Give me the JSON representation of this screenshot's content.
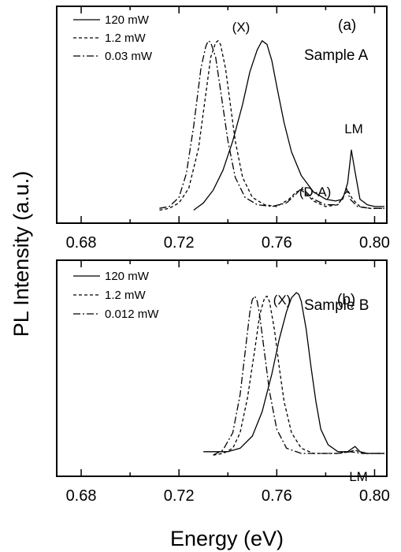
{
  "chart_data": [
    {
      "type": "line",
      "panel": "a",
      "panel_label": "(a)",
      "sample_label": "Sample A",
      "xlabel": "Energy (eV)",
      "ylabel": "PL Intensity (a.u.)",
      "xlim": [
        0.67,
        0.805
      ],
      "ylim": [
        0,
        1
      ],
      "x_ticks": [
        "0.68",
        "0.72",
        "0.76",
        "0.80"
      ],
      "legend_position": "top-left",
      "annotations": [
        {
          "text": "(X)",
          "x": 0.745,
          "y": 0.92
        },
        {
          "text": "(D-A)",
          "x": 0.77,
          "y": 0.25
        },
        {
          "text": "LM",
          "x": 0.791,
          "y": 0.34
        }
      ],
      "series": [
        {
          "name": "120 mW",
          "style": "solid",
          "x": [
            0.726,
            0.73,
            0.734,
            0.738,
            0.742,
            0.746,
            0.749,
            0.752,
            0.754,
            0.756,
            0.758,
            0.76,
            0.763,
            0.766,
            0.77,
            0.775,
            0.78,
            0.784,
            0.787,
            0.789,
            0.7905,
            0.792,
            0.794,
            0.797,
            0.8,
            0.804
          ],
          "y": [
            0.0,
            0.04,
            0.11,
            0.22,
            0.38,
            0.58,
            0.76,
            0.88,
            0.93,
            0.91,
            0.82,
            0.68,
            0.48,
            0.32,
            0.19,
            0.1,
            0.06,
            0.05,
            0.06,
            0.15,
            0.33,
            0.21,
            0.06,
            0.03,
            0.02,
            0.02
          ]
        },
        {
          "name": "1.2 mW",
          "style": "dashed",
          "x": [
            0.712,
            0.716,
            0.72,
            0.724,
            0.728,
            0.731,
            0.733,
            0.735,
            0.736,
            0.737,
            0.739,
            0.741,
            0.743,
            0.746,
            0.75,
            0.755,
            0.76,
            0.765,
            0.768,
            0.77,
            0.772,
            0.775,
            0.78,
            0.785,
            0.787,
            0.789,
            0.791,
            0.794,
            0.798,
            0.804
          ],
          "y": [
            0.0,
            0.01,
            0.04,
            0.12,
            0.34,
            0.64,
            0.84,
            0.92,
            0.93,
            0.91,
            0.78,
            0.58,
            0.38,
            0.18,
            0.07,
            0.03,
            0.02,
            0.06,
            0.1,
            0.11,
            0.09,
            0.05,
            0.02,
            0.03,
            0.07,
            0.11,
            0.06,
            0.02,
            0.01,
            0.01
          ]
        },
        {
          "name": "0.03 mW",
          "style": "dashdot",
          "x": [
            0.712,
            0.716,
            0.72,
            0.723,
            0.726,
            0.729,
            0.731,
            0.732,
            0.733,
            0.735,
            0.737,
            0.74,
            0.743,
            0.747,
            0.752,
            0.758,
            0.764,
            0.768,
            0.77,
            0.772,
            0.775,
            0.78,
            0.785,
            0.787,
            0.7885,
            0.79,
            0.793,
            0.798,
            0.804
          ],
          "y": [
            0.01,
            0.02,
            0.07,
            0.2,
            0.46,
            0.78,
            0.9,
            0.93,
            0.92,
            0.84,
            0.66,
            0.38,
            0.18,
            0.07,
            0.03,
            0.02,
            0.04,
            0.09,
            0.12,
            0.1,
            0.06,
            0.03,
            0.03,
            0.07,
            0.12,
            0.06,
            0.02,
            0.01,
            0.01
          ]
        }
      ]
    },
    {
      "type": "line",
      "panel": "b",
      "panel_label": "(b)",
      "sample_label": "Sample B",
      "xlabel": "Energy (eV)",
      "ylabel": "PL Intensity (a.u.)",
      "xlim": [
        0.67,
        0.805
      ],
      "ylim": [
        0,
        1
      ],
      "x_ticks": [
        "0.68",
        "0.72",
        "0.76",
        "0.80"
      ],
      "legend_position": "top-left",
      "annotations": [
        {
          "text": "(X)",
          "x": 0.757,
          "y": 0.95
        },
        {
          "text": "LM",
          "x": 0.792,
          "y": 0.15
        }
      ],
      "series": [
        {
          "name": "120 mW",
          "style": "solid",
          "x": [
            0.73,
            0.735,
            0.74,
            0.745,
            0.75,
            0.754,
            0.758,
            0.761,
            0.764,
            0.766,
            0.768,
            0.769,
            0.77,
            0.772,
            0.774,
            0.776,
            0.778,
            0.781,
            0.785,
            0.789,
            0.791,
            0.792,
            0.794,
            0.797,
            0.8,
            0.804
          ],
          "y": [
            0.03,
            0.03,
            0.03,
            0.05,
            0.12,
            0.26,
            0.48,
            0.68,
            0.84,
            0.92,
            0.95,
            0.94,
            0.9,
            0.74,
            0.52,
            0.32,
            0.16,
            0.07,
            0.03,
            0.03,
            0.05,
            0.06,
            0.03,
            0.02,
            0.02,
            0.02
          ]
        },
        {
          "name": "1.2 mW",
          "style": "dashed",
          "x": [
            0.734,
            0.738,
            0.742,
            0.745,
            0.748,
            0.751,
            0.753,
            0.755,
            0.756,
            0.757,
            0.759,
            0.761,
            0.763,
            0.766,
            0.77,
            0.775,
            0.78,
            0.785,
            0.79,
            0.792,
            0.795,
            0.8,
            0.804
          ],
          "y": [
            0.01,
            0.02,
            0.05,
            0.14,
            0.34,
            0.62,
            0.82,
            0.92,
            0.93,
            0.9,
            0.74,
            0.52,
            0.32,
            0.14,
            0.05,
            0.02,
            0.02,
            0.02,
            0.03,
            0.04,
            0.02,
            0.02,
            0.02
          ]
        },
        {
          "name": "0.012 mW",
          "style": "dashdot",
          "x": [
            0.734,
            0.738,
            0.742,
            0.745,
            0.747,
            0.749,
            0.75,
            0.751,
            0.752,
            0.753,
            0.755,
            0.757,
            0.76,
            0.764,
            0.77,
            0.775,
            0.78,
            0.785,
            0.79,
            0.795,
            0.8,
            0.804
          ],
          "y": [
            0.01,
            0.04,
            0.14,
            0.36,
            0.6,
            0.84,
            0.91,
            0.93,
            0.9,
            0.82,
            0.6,
            0.38,
            0.16,
            0.05,
            0.02,
            0.02,
            0.02,
            0.02,
            0.03,
            0.02,
            0.02,
            0.02
          ]
        }
      ]
    }
  ]
}
